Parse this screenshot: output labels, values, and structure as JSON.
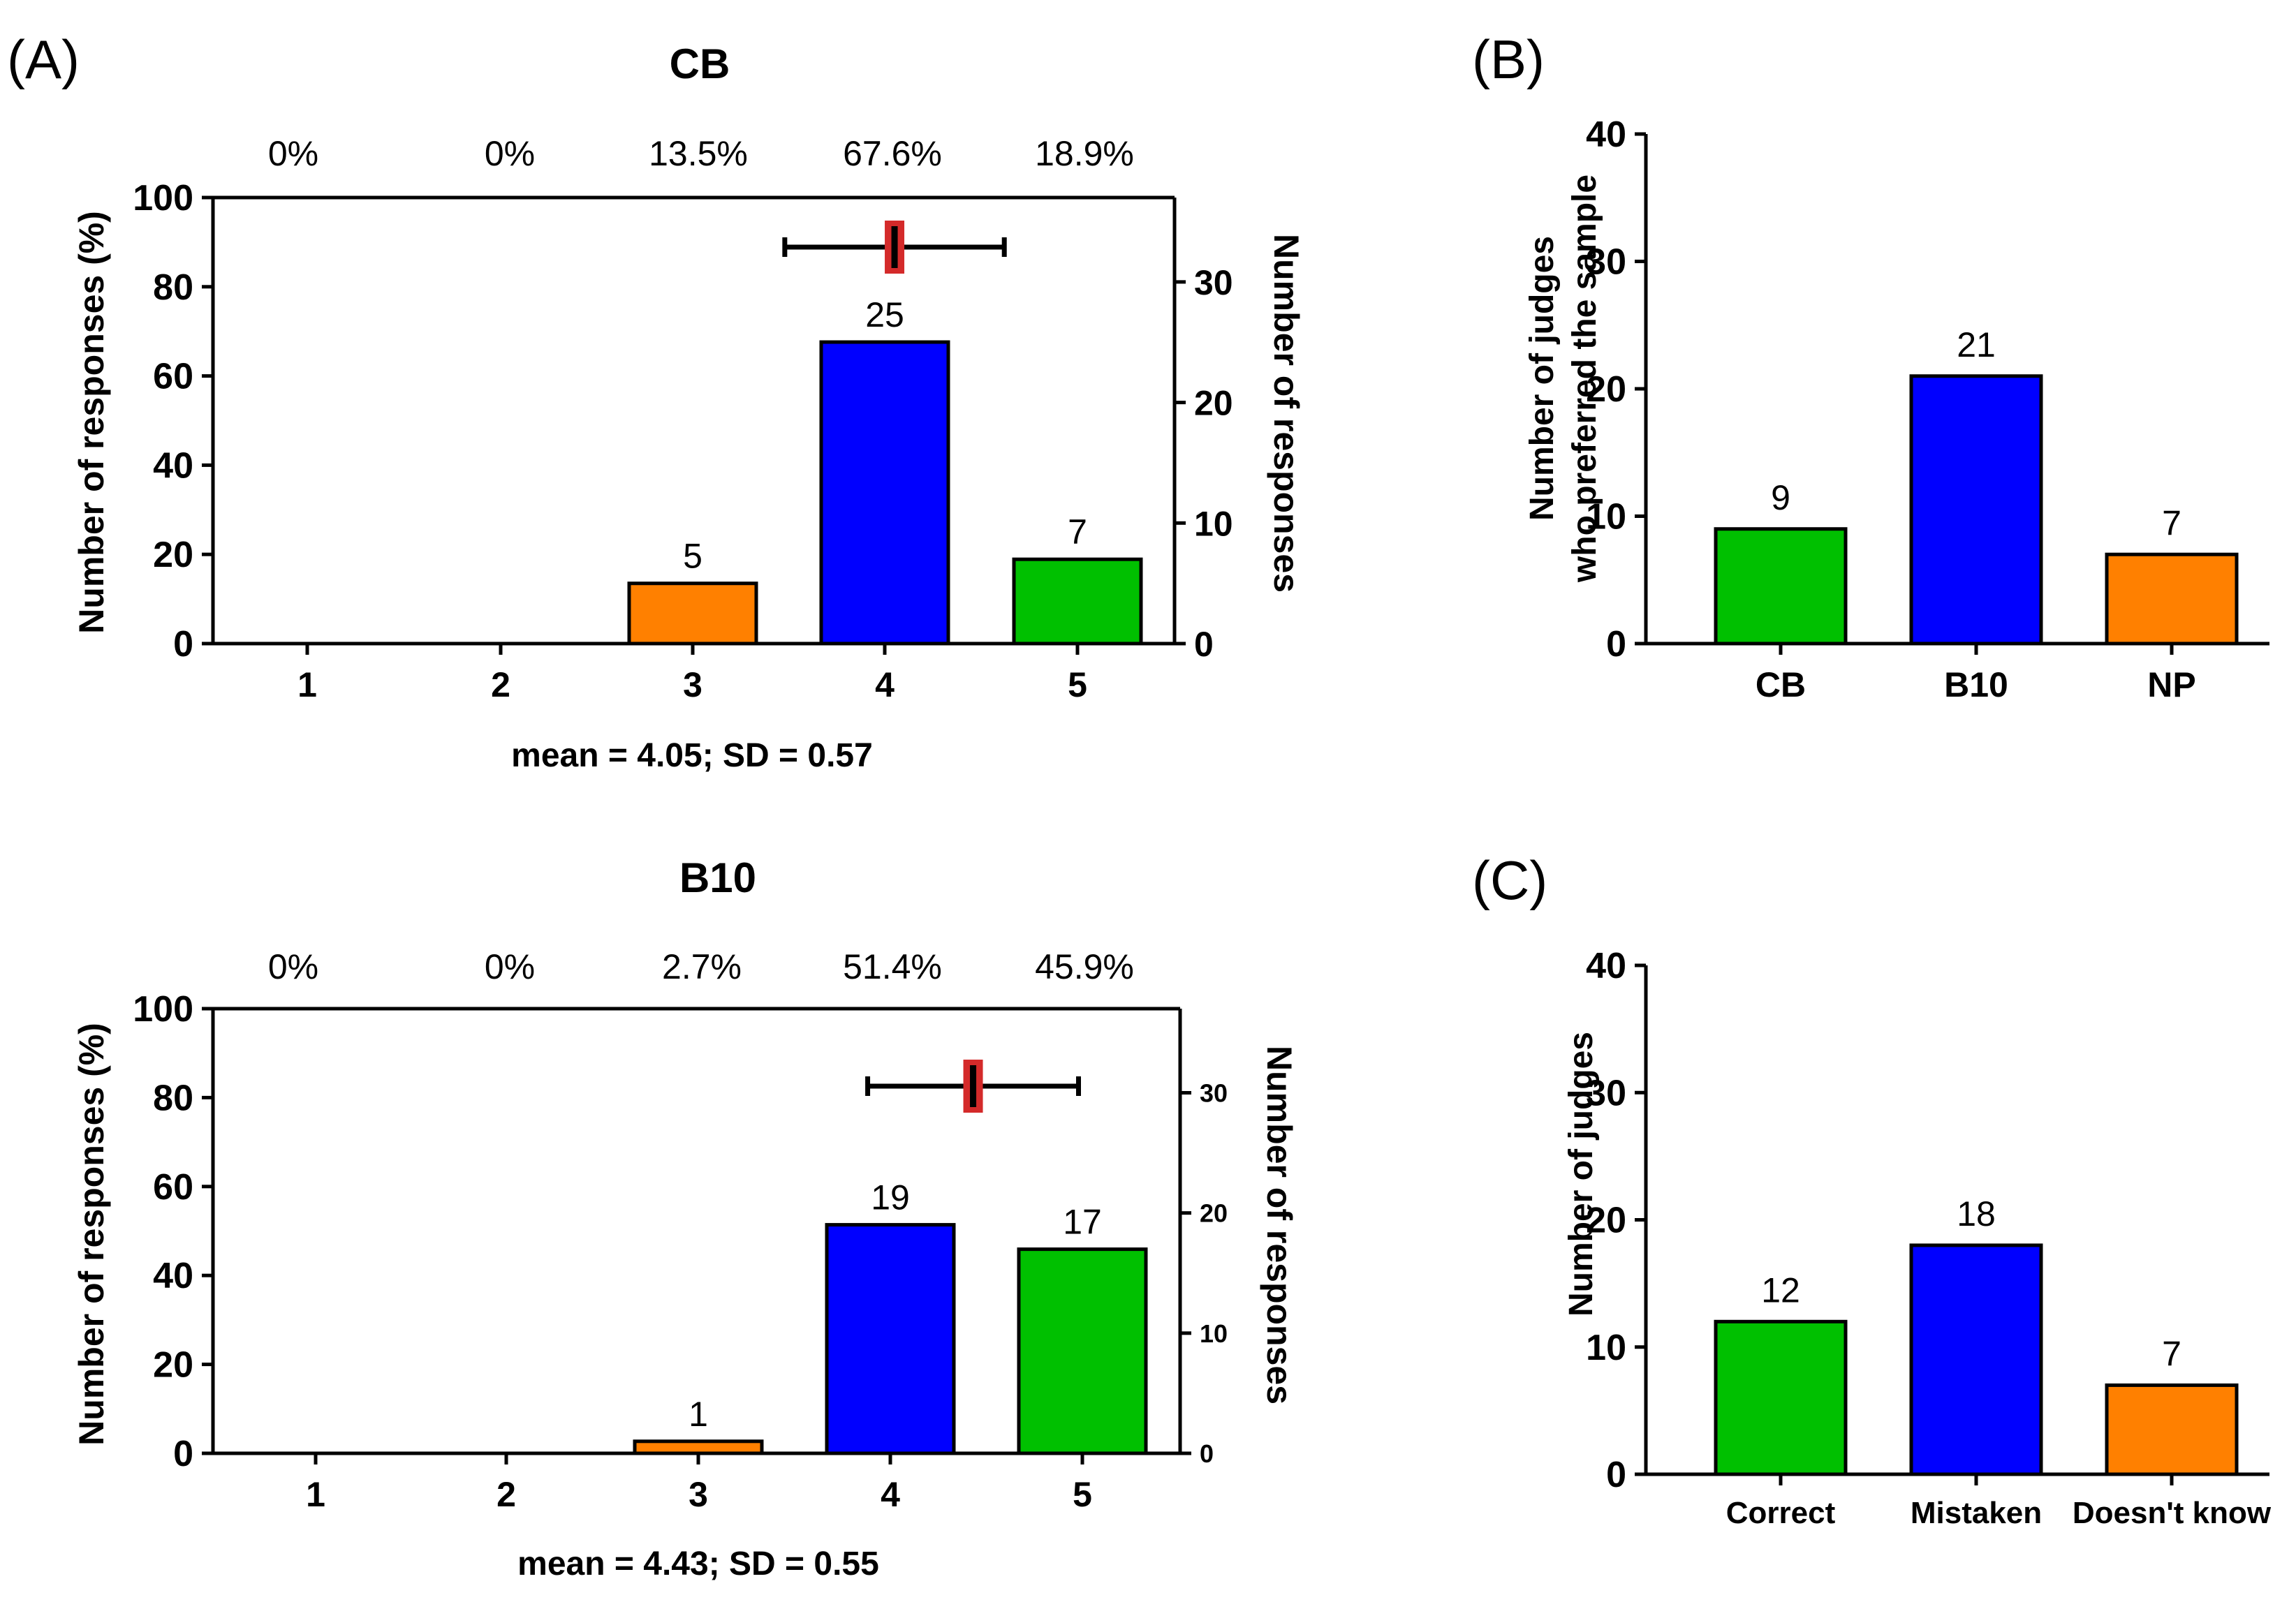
{
  "panels": {
    "a": {
      "label": "(A)"
    },
    "b": {
      "label": "(B)"
    },
    "c": {
      "label": "(C)"
    }
  },
  "colors": {
    "green": "#00c000",
    "blue": "#0000ff",
    "orange": "#ff8000",
    "marker": "#d42a2a"
  },
  "chart_data": [
    {
      "id": "cb",
      "type": "bar",
      "title": "CB",
      "categories": [
        "1",
        "2",
        "3",
        "4",
        "5"
      ],
      "counts": [
        0,
        0,
        5,
        25,
        7
      ],
      "count_labels": [
        "",
        "",
        "5",
        "25",
        "7"
      ],
      "values": [
        0,
        0,
        13.5,
        67.6,
        18.9
      ],
      "percent_labels": [
        "0%",
        "0%",
        "13.5%",
        "67.6%",
        "18.9%"
      ],
      "bar_colors": [
        "orange",
        "orange",
        "orange",
        "blue",
        "green"
      ],
      "ylabel": "Number of responses (%)",
      "ylim": [
        0,
        100
      ],
      "yticks": [
        "0",
        "20",
        "40",
        "60",
        "80",
        "100"
      ],
      "y2label": "Number of responses",
      "y2lim": [
        0,
        37
      ],
      "y2ticks": [
        "0",
        "10",
        "20",
        "30"
      ],
      "mean": 4.05,
      "sd": 0.57,
      "summary": "mean = 4.05; SD = 0.57"
    },
    {
      "id": "b10",
      "type": "bar",
      "title": "B10",
      "categories": [
        "1",
        "2",
        "3",
        "4",
        "5"
      ],
      "counts": [
        0,
        0,
        1,
        19,
        17
      ],
      "count_labels": [
        "",
        "",
        "1",
        "19",
        "17"
      ],
      "values": [
        0,
        0,
        2.7,
        51.4,
        45.9
      ],
      "percent_labels": [
        "0%",
        "0%",
        "2.7%",
        "51.4%",
        "45.9%"
      ],
      "bar_colors": [
        "orange",
        "orange",
        "orange",
        "blue",
        "green"
      ],
      "ylabel": "Number of responses (%)",
      "ylim": [
        0,
        100
      ],
      "yticks": [
        "0",
        "20",
        "40",
        "60",
        "80",
        "100"
      ],
      "y2label": "Number of responses",
      "y2lim": [
        0,
        37
      ],
      "y2ticks": [
        "0",
        "10",
        "20",
        "30"
      ],
      "mean": 4.43,
      "sd": 0.55,
      "summary": "mean = 4.43; SD = 0.55"
    },
    {
      "id": "pref",
      "type": "bar",
      "categories": [
        "CB",
        "B10",
        "NP"
      ],
      "values": [
        9,
        21,
        7
      ],
      "value_labels": [
        "9",
        "21",
        "7"
      ],
      "bar_colors": [
        "green",
        "blue",
        "orange"
      ],
      "ylabel_lines": [
        "Number of judges",
        "who preferred the sample"
      ],
      "ylim": [
        0,
        40
      ],
      "yticks": [
        "0",
        "10",
        "20",
        "30",
        "40"
      ]
    },
    {
      "id": "ident",
      "type": "bar",
      "categories": [
        "Correct",
        "Mistaken",
        "Doesn't know"
      ],
      "values": [
        12,
        18,
        7
      ],
      "value_labels": [
        "12",
        "18",
        "7"
      ],
      "bar_colors": [
        "green",
        "blue",
        "orange"
      ],
      "ylabel_lines": [
        "Number of judges"
      ],
      "ylim": [
        0,
        40
      ],
      "yticks": [
        "0",
        "10",
        "20",
        "30",
        "40"
      ]
    }
  ]
}
